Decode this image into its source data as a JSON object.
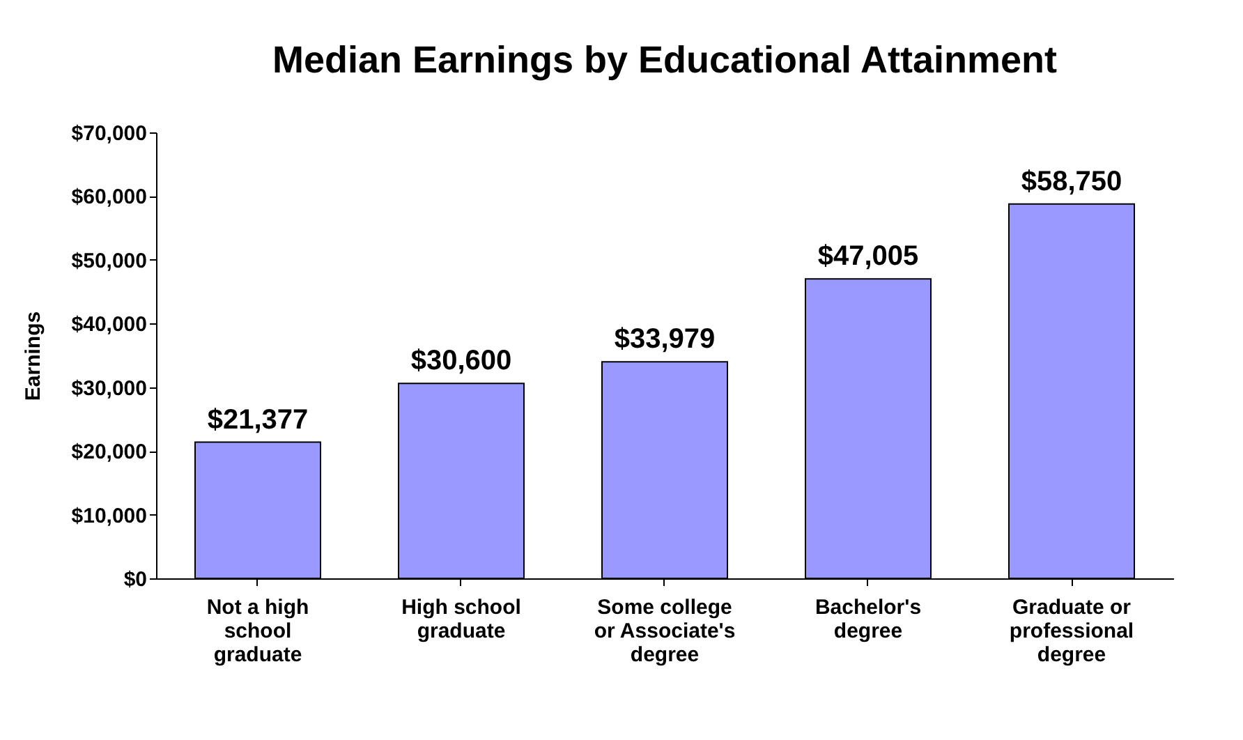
{
  "chart_data": {
    "type": "bar",
    "title": "Median Earnings by Educational Attainment",
    "ylabel": "Earnings",
    "categories": [
      "Not a high\nschool\ngraduate",
      "High school\ngraduate",
      "Some college\nor Associate's\ndegree",
      "Bachelor's\ndegree",
      "Graduate or\nprofessional\ndegree"
    ],
    "values": [
      21377,
      30600,
      33979,
      47005,
      58750
    ],
    "value_labels": [
      "$21,377",
      "$30,600",
      "$33,979",
      "$47,005",
      "$58,750"
    ],
    "color": "#9999ff",
    "ylim": [
      0,
      70000
    ],
    "yticks": [
      {
        "value": 0,
        "label": "$0"
      },
      {
        "value": 10000,
        "label": "$10,000"
      },
      {
        "value": 20000,
        "label": "$20,000"
      },
      {
        "value": 30000,
        "label": "$30,000"
      },
      {
        "value": 40000,
        "label": "$40,000"
      },
      {
        "value": 50000,
        "label": "$50,000"
      },
      {
        "value": 60000,
        "label": "$60,000"
      },
      {
        "value": 70000,
        "label": "$70,000"
      }
    ],
    "grid": false
  }
}
